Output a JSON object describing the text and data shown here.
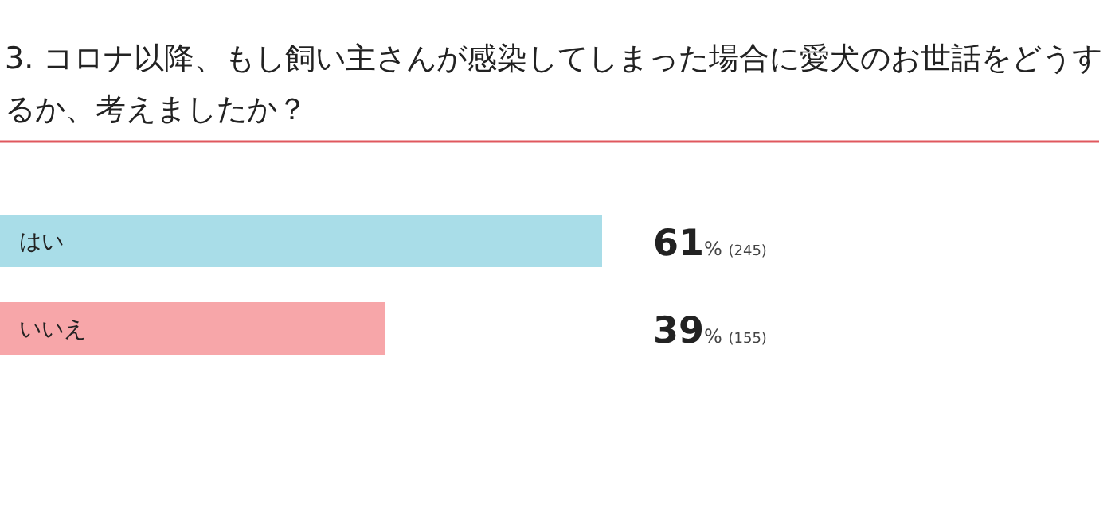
{
  "chart_data": {
    "type": "bar",
    "orientation": "horizontal",
    "title": "3. コロナ以降、もし飼い主さんが感染してしまった場合に愛犬のお世話をどうするか、考えましたか？",
    "categories": [
      "はい",
      "いいえ"
    ],
    "values": [
      61,
      39
    ],
    "colors": [
      "#a9dde8",
      "#f7a6a9"
    ],
    "value_labels": [
      "61% (245)",
      "39% (155)"
    ]
  }
}
